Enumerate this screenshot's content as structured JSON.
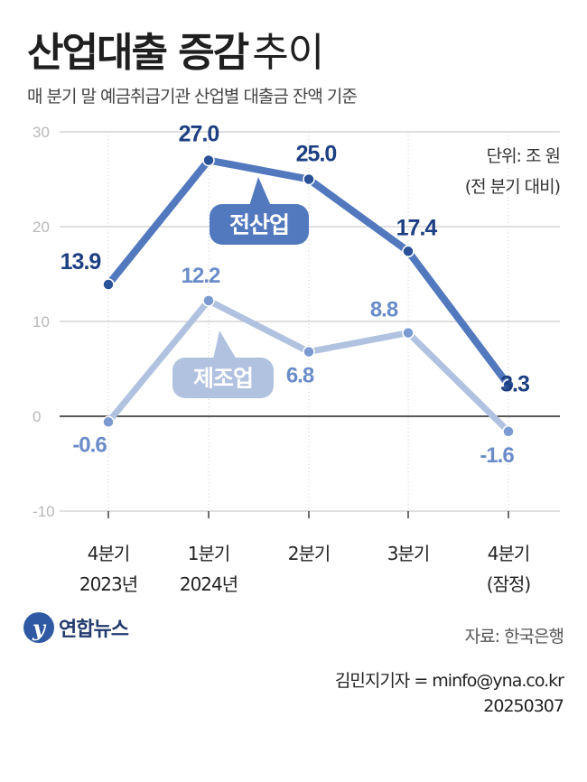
{
  "header": {
    "title_bold": "산업대출 증감",
    "title_light": "추이",
    "subtitle": "매 분기 말 예금취급기관 산업별 대출금 잔액 기준"
  },
  "unit": {
    "line1": "단위: 조 원",
    "line2": "(전 분기 대비)"
  },
  "footer": {
    "logo_text": "연합뉴스",
    "logo_mark": "y",
    "source": "자료: 한국은행",
    "byline": "김민지기자 = minfo@yna.co.kr",
    "date": "20250307"
  },
  "colors": {
    "all_industry": "#5278be",
    "all_industry_label": "#1d3f82",
    "manufacturing": "#b1c2e0",
    "manufacturing_label": "#6a8cc9",
    "grid": "#bfbfbf",
    "zero_line": "#222222",
    "tick": "#b8b8b8"
  },
  "chart_data": {
    "type": "line",
    "categories": [
      [
        "4분기",
        "2023년"
      ],
      [
        "1분기",
        "2024년"
      ],
      [
        "2분기"
      ],
      [
        "3분기"
      ],
      [
        "4분기",
        "(잠정)"
      ]
    ],
    "series": [
      {
        "name": "전산업",
        "values": [
          13.9,
          27.0,
          25.0,
          17.4,
          3.3
        ],
        "labels": [
          "13.9",
          "27.0",
          "25.0",
          "17.4",
          "3.3"
        ]
      },
      {
        "name": "제조업",
        "values": [
          -0.6,
          12.2,
          6.8,
          8.8,
          -1.6
        ],
        "labels": [
          "-0.6",
          "12.2",
          "6.8",
          "8.8",
          "-1.6"
        ]
      }
    ],
    "ylim": [
      -10,
      30
    ],
    "yticks": [
      30,
      20,
      10,
      0,
      -10
    ],
    "grid": true
  }
}
